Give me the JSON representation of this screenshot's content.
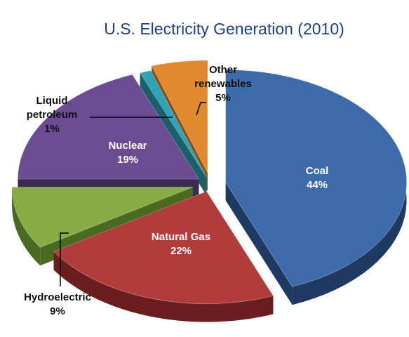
{
  "chart_data": {
    "type": "pie",
    "title": "U.S. Electricity Generation (2010)",
    "style": "3d-exploded",
    "slices": [
      {
        "name": "Coal",
        "value": 44,
        "label": "44%",
        "color": "#3d6aa8",
        "side_color": "#1f3a62"
      },
      {
        "name": "Natural Gas",
        "value": 22,
        "label": "22%",
        "color": "#b23b3b",
        "side_color": "#6b1e1e"
      },
      {
        "name": "Hydroelectric",
        "value": 9,
        "label": "9%",
        "color": "#86ac43",
        "side_color": "#4a6a22"
      },
      {
        "name": "Nuclear",
        "value": 19,
        "label": "19%",
        "color": "#6a4c93",
        "side_color": "#3b2a55"
      },
      {
        "name": "Liquid petroleum",
        "value": 1,
        "label": "1%",
        "color": "#2fa3b8",
        "side_color": "#1b5f6b"
      },
      {
        "name": "Other renewables",
        "value": 5,
        "label": "5%",
        "color": "#e0892e",
        "side_color": "#8a5018"
      }
    ],
    "label_lines": {
      "liquid_petroleum": [
        "Liquid",
        "petroleum"
      ],
      "other_renewables": [
        "Other",
        "renewables"
      ]
    }
  }
}
